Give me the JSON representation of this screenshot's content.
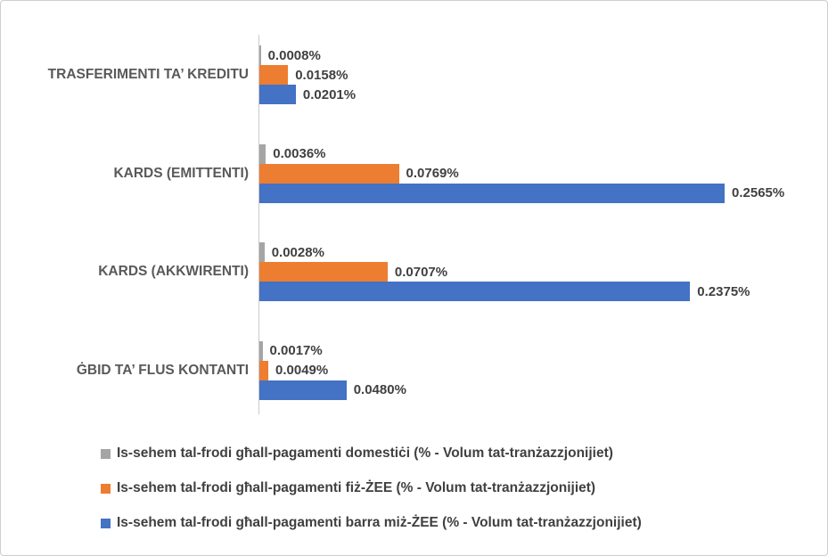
{
  "chart_data": {
    "type": "bar",
    "orientation": "horizontal",
    "title": "",
    "xlabel": "",
    "ylabel": "",
    "xlim": [
      0,
      0.2565
    ],
    "grid": false,
    "legend_position": "bottom",
    "categories": [
      "TRASFERIMENTI TA’ KREDITU",
      "KARDS (EMITTENTI)",
      "KARDS (AKKWIRENTI)",
      "ĠBID TA’ FLUS KONTANTI"
    ],
    "series": [
      {
        "name": "Is-sehem tal-frodi għall-pagamenti domestiċi (% - Volum tat-tranżazzjonijiet)",
        "color": "#A5A5A5",
        "values": [
          0.0008,
          0.0036,
          0.0028,
          0.0017
        ],
        "labels": [
          "0.0008%",
          "0.0036%",
          "0.0028%",
          "0.0017%"
        ]
      },
      {
        "name": "Is-sehem tal-frodi għall-pagamenti fiż-ŻEE (% - Volum tat-tranżazzjonijiet)",
        "color": "#ED7D31",
        "values": [
          0.0158,
          0.0769,
          0.0707,
          0.0049
        ],
        "labels": [
          "0.0158%",
          "0.0769%",
          "0.0707%",
          "0.0049%"
        ]
      },
      {
        "name": "Is-sehem tal-frodi għall-pagamenti barra miż-ŻEE (% - Volum tat-tranżazzjonijiet)",
        "color": "#4472C4",
        "values": [
          0.0201,
          0.2565,
          0.2375,
          0.048
        ],
        "labels": [
          "0.0201%",
          "0.2565%",
          "0.2375%",
          "0.0480%"
        ]
      }
    ]
  },
  "colors": {
    "frame_border": "#CFCFCF",
    "axis_line": "#C9C9C9",
    "category_text": "#595959",
    "value_text": "#404040",
    "legend_text": "#404040",
    "background": "#FFFFFF"
  }
}
